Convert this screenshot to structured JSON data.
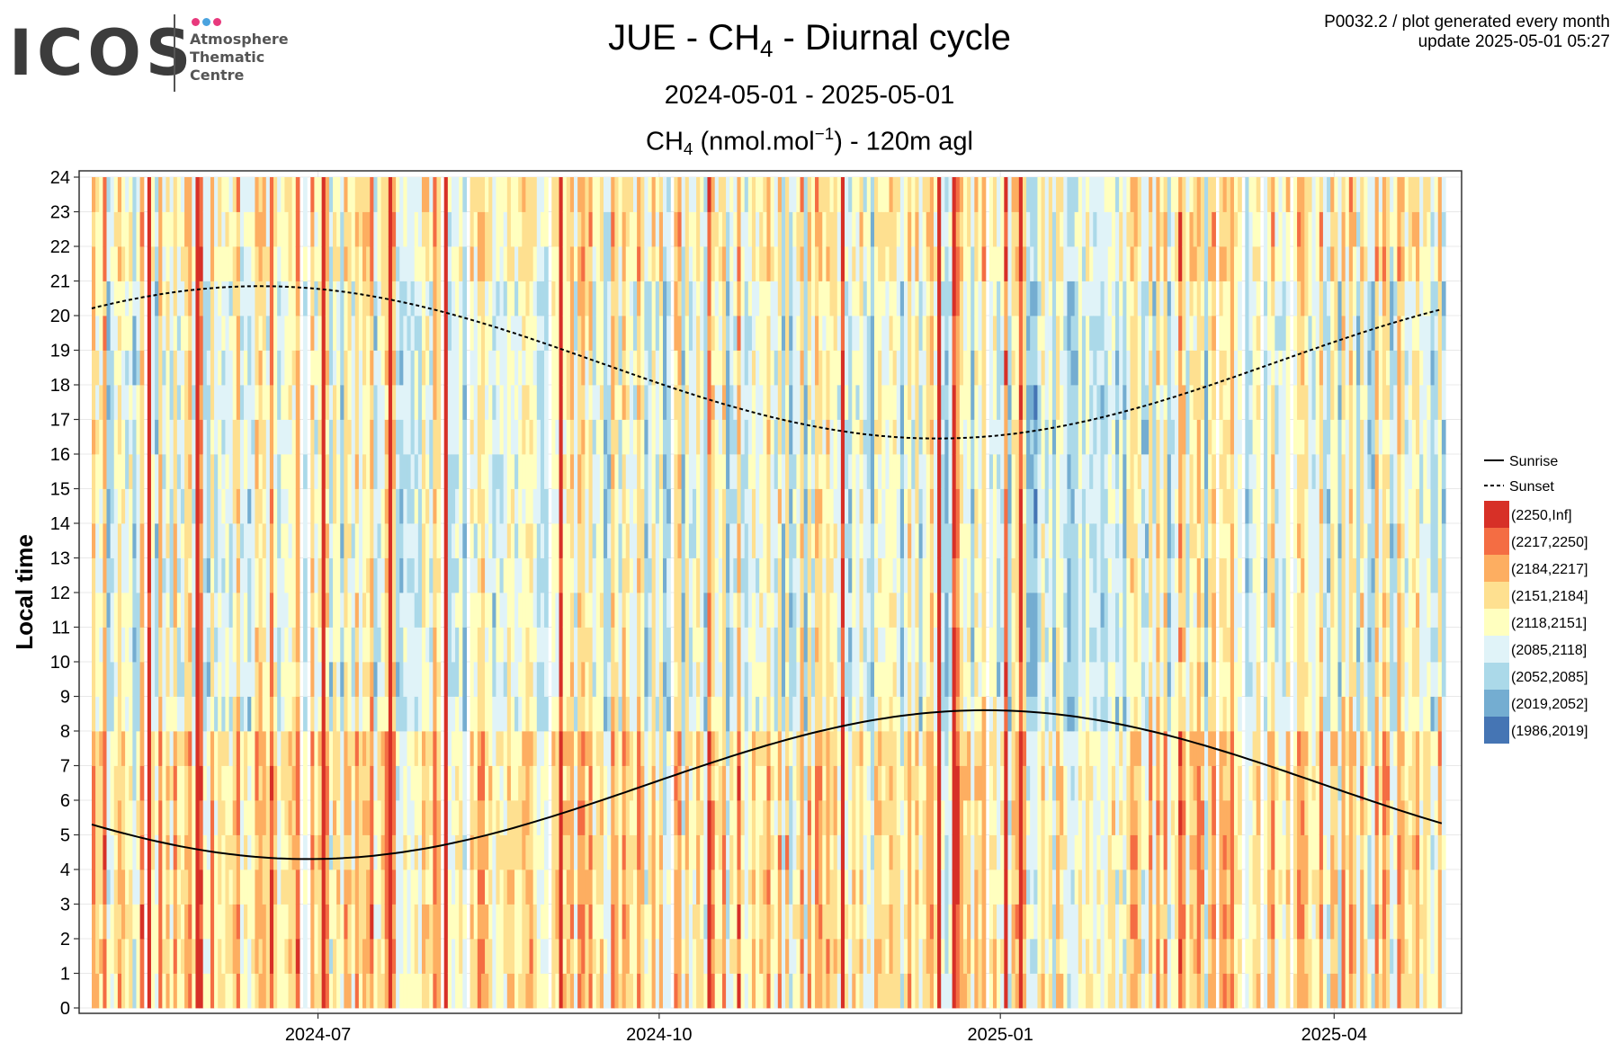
{
  "logo": {
    "word": "ICOS",
    "lines": [
      "Atmosphere",
      "Thematic",
      "Centre"
    ],
    "dot_colors": [
      "#e8397d",
      "#4aa3df",
      "#e8397d"
    ]
  },
  "meta": {
    "line1": "P0032.2 / plot generated every month",
    "line2": "update  2025-05-01 05:27"
  },
  "titles": {
    "station": "JUE - CH",
    "species_sub": "4",
    "suffix": " - Diurnal cycle",
    "period": "2024-05-01 - 2025-05-01",
    "var_main": "CH",
    "var_sub": "4",
    "unit_pre": " (nmol.mol",
    "unit_sup": "−1",
    "unit_post": ") - 120m agl"
  },
  "chart_data": {
    "type": "heatmap",
    "x_start": "2024-05-01",
    "x_end": "2025-05-01",
    "xlabel": "",
    "ylabel": "Local time",
    "ylim": [
      0,
      24
    ],
    "y_ticks": [
      0,
      1,
      2,
      3,
      4,
      5,
      6,
      7,
      8,
      9,
      10,
      11,
      12,
      13,
      14,
      15,
      16,
      17,
      18,
      19,
      20,
      21,
      22,
      23,
      24
    ],
    "x_ticks": [
      "2024-07",
      "2024-10",
      "2025-01",
      "2025-04"
    ],
    "grid": true,
    "legend_position": "right",
    "lines": [
      {
        "name": "Sunrise",
        "style": "solid",
        "mean": 6.45,
        "amplitude": 2.15,
        "phase_date": "2024-12-28"
      },
      {
        "name": "Sunset",
        "style": "dashed",
        "mean": 18.65,
        "amplitude": -2.2,
        "phase_date": "2024-12-15"
      }
    ],
    "bins": [
      {
        "label": "(2250,Inf]",
        "color": "#d73027"
      },
      {
        "label": "(2217,2250]",
        "color": "#f46d43"
      },
      {
        "label": "(2184,2217]",
        "color": "#fdae61"
      },
      {
        "label": "(2151,2184]",
        "color": "#fee090"
      },
      {
        "label": "(2118,2151]",
        "color": "#ffffbf"
      },
      {
        "label": "(2085,2118]",
        "color": "#e0f3f8"
      },
      {
        "label": "(2052,2085]",
        "color": "#abd9e9"
      },
      {
        "label": "(2019,2052]",
        "color": "#74add1"
      },
      {
        "label": "(1986,2019]",
        "color": "#4575b4"
      }
    ]
  }
}
